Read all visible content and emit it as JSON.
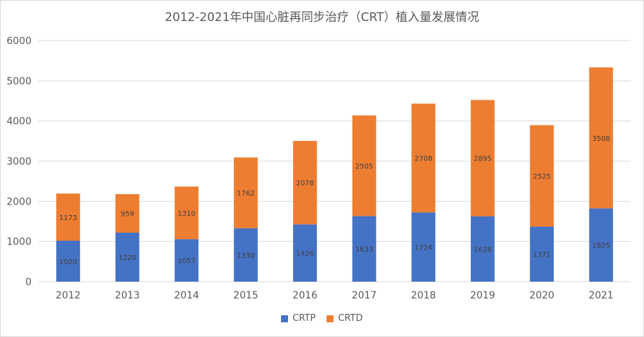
{
  "chart_data": {
    "type": "bar",
    "stacked": true,
    "title": "2012-2021年中国心脏再同步治疗（CRT）植入量发展情况",
    "categories": [
      "2012",
      "2013",
      "2014",
      "2015",
      "2016",
      "2017",
      "2018",
      "2019",
      "2020",
      "2021"
    ],
    "series": [
      {
        "name": "CRTP",
        "color": "#4472c4",
        "values": [
          1020,
          1220,
          1057,
          1330,
          1426,
          1633,
          1724,
          1628,
          1371,
          1825
        ]
      },
      {
        "name": "CRTD",
        "color": "#ed7d31",
        "values": [
          1173,
          959,
          1310,
          1762,
          2078,
          2505,
          2708,
          2895,
          2525,
          3508
        ]
      }
    ],
    "ylim": [
      0,
      6000
    ],
    "yticks": [
      0,
      1000,
      2000,
      3000,
      4000,
      5000,
      6000
    ],
    "grid": true,
    "legend_position": "bottom"
  }
}
